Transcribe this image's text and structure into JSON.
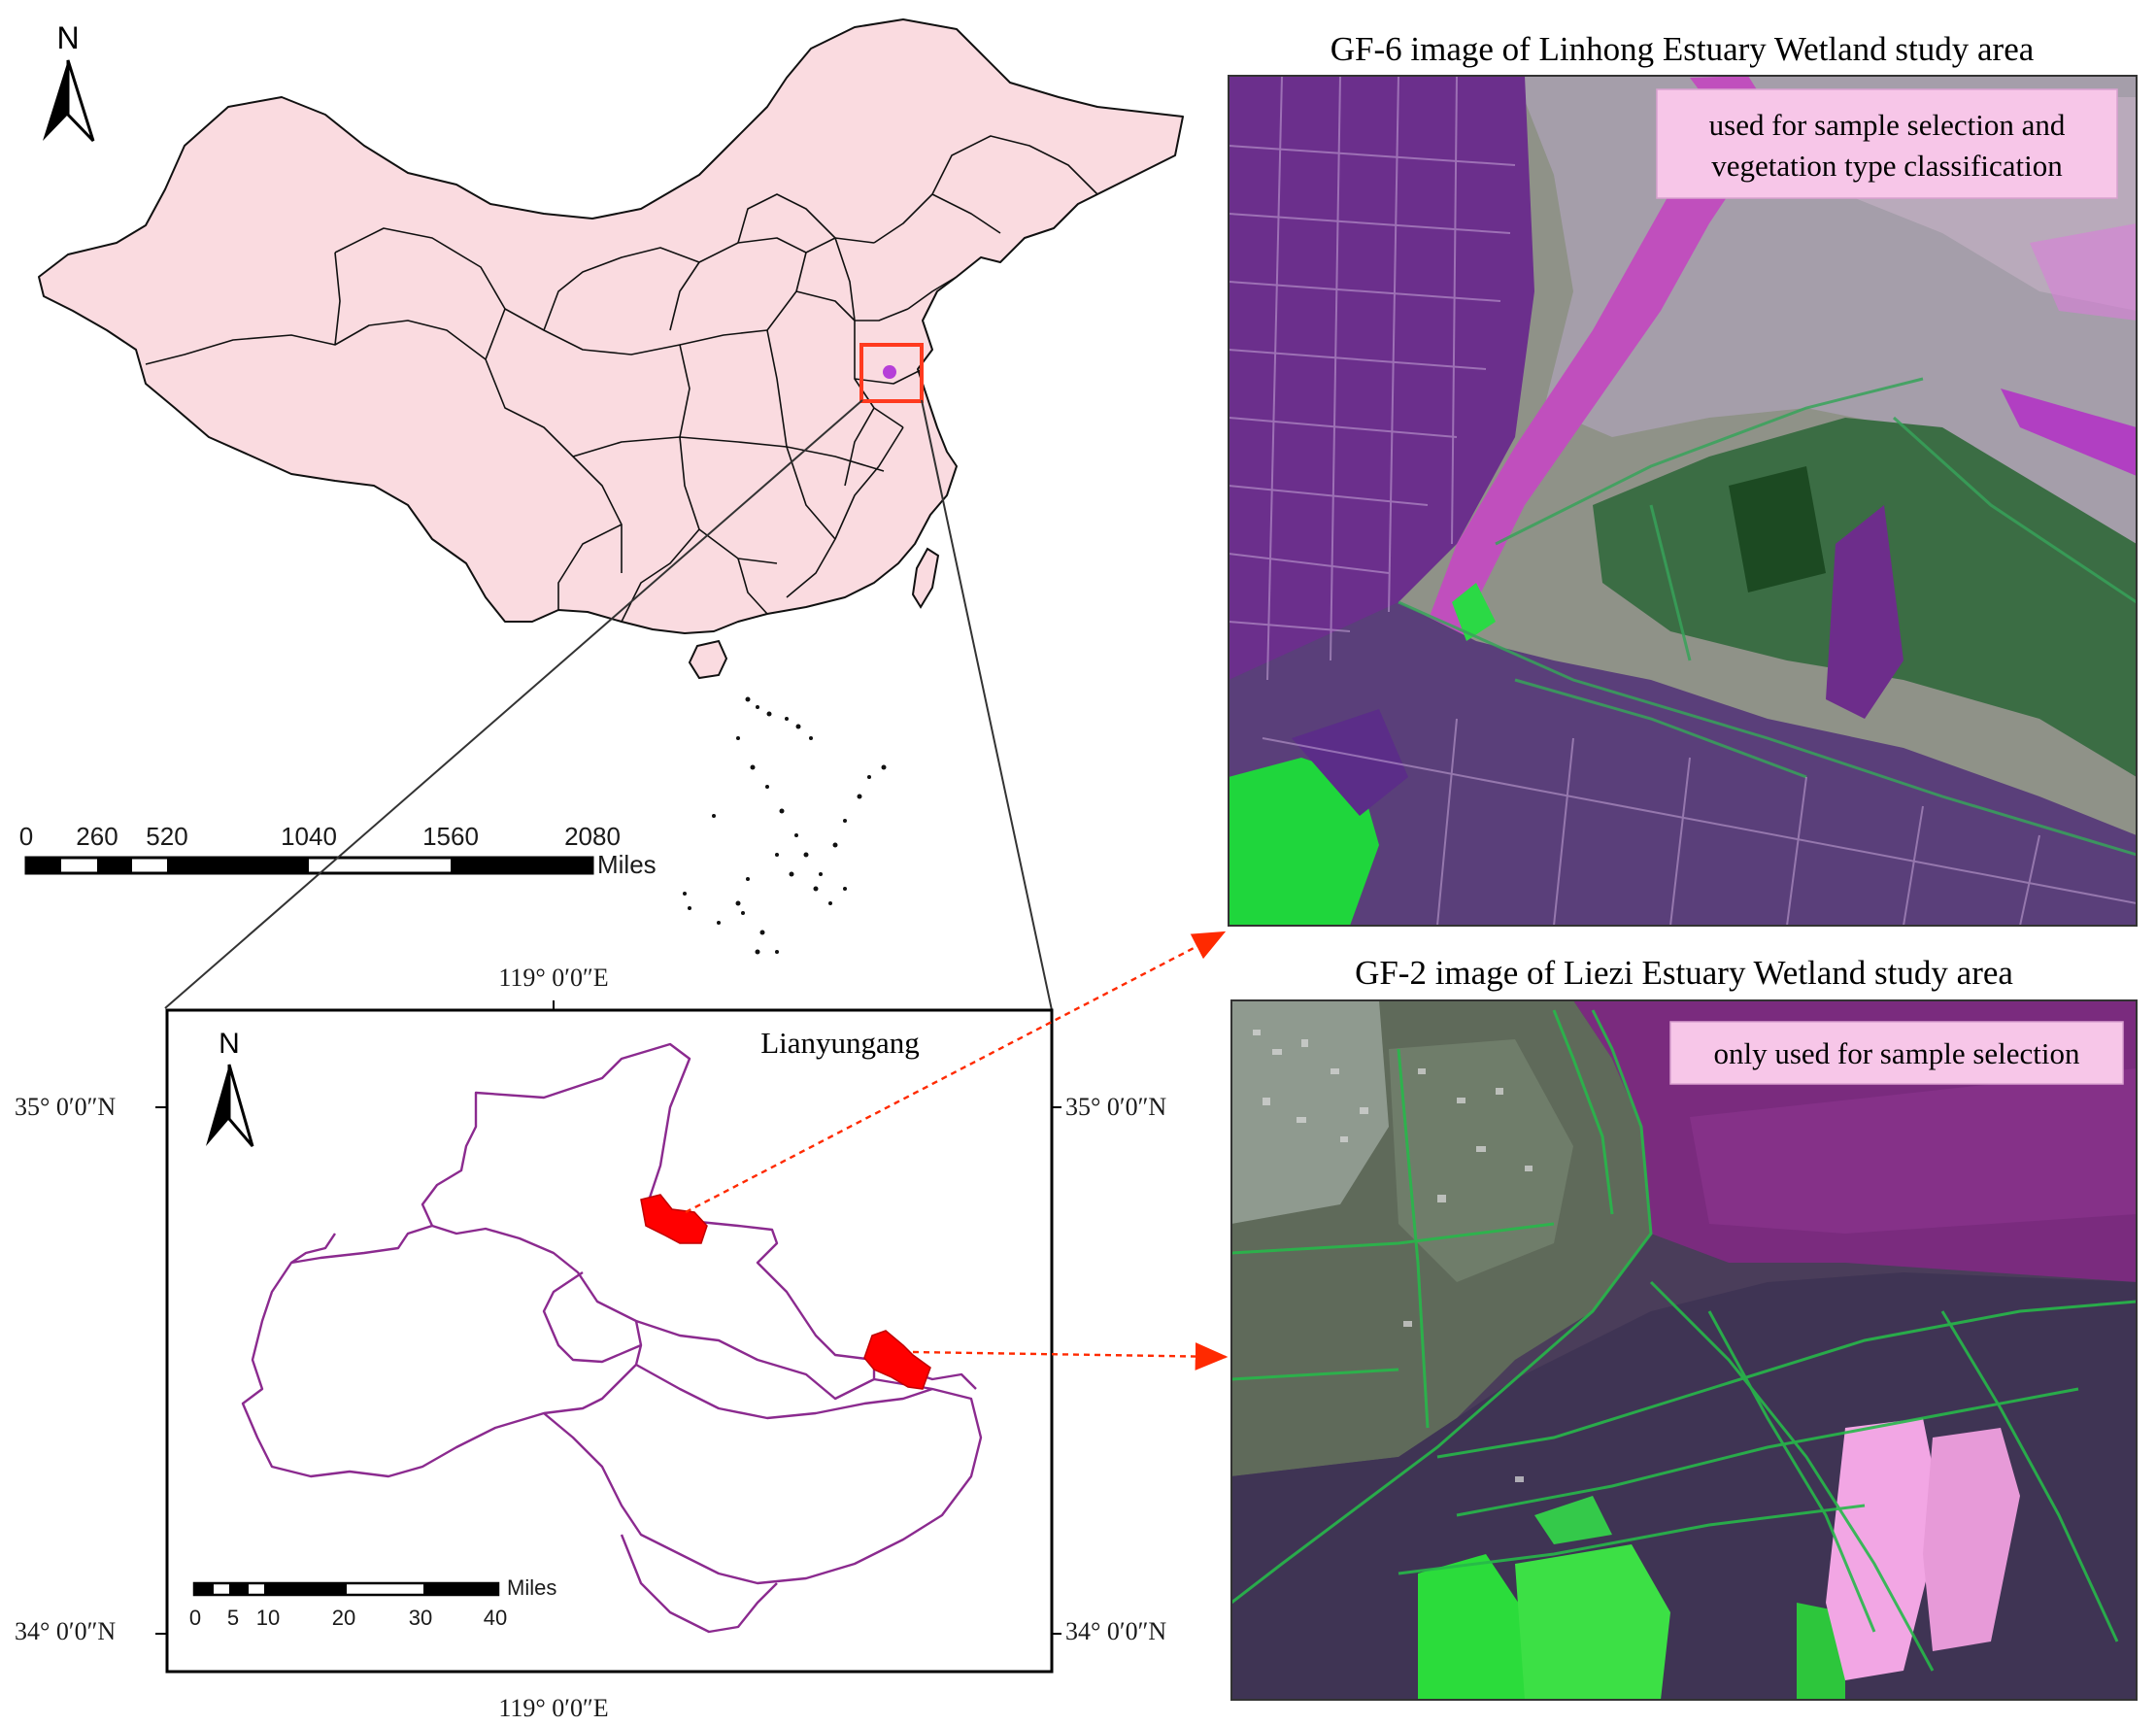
{
  "north_label": "N",
  "national_map": {
    "scale_ticks": [
      "0",
      "260",
      "520",
      "1040",
      "1560",
      "2080"
    ],
    "scale_unit": "Miles"
  },
  "inset_map": {
    "name": "Lianyungang",
    "lon_top": "119° 0′0″E",
    "lon_bottom": "119° 0′0″E",
    "lat_top_left": "35° 0′0″N",
    "lat_top_right": "35° 0′0″N",
    "lat_bottom_left": "34° 0′0″N",
    "lat_bottom_right": "34° 0′0″N",
    "scale_ticks": [
      "0",
      "5",
      "10",
      "20",
      "30",
      "40"
    ],
    "scale_unit": "Miles",
    "outline_color": "#8b2a8f",
    "study_area_color": "#ff0000"
  },
  "panels": {
    "gf6": {
      "title": "GF-6 image of Linhong Estuary Wetland  study area",
      "note_line1": "used for sample selection and",
      "note_line2": "vegetation type classification"
    },
    "gf2": {
      "title": "GF-2 image of Liezi Estuary Wetland study area",
      "note_line1": "only used for sample selection"
    }
  },
  "colors": {
    "land_fill": "#fadbe0",
    "highlight_box": "#ff3a1f",
    "arrow": "#ff2a00",
    "note_bg": "#f7c6e8"
  }
}
